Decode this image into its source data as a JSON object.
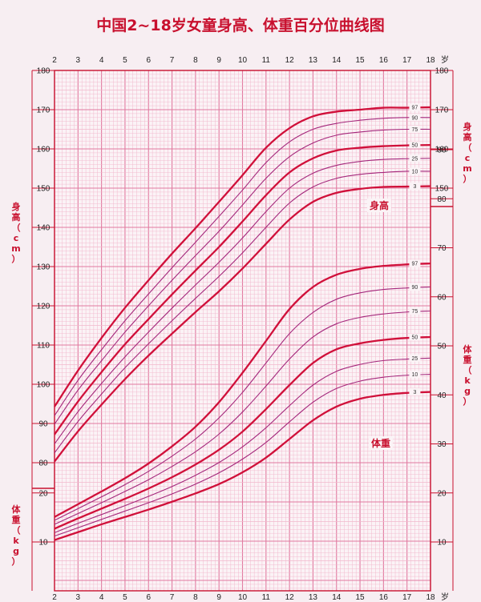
{
  "chart_data": {
    "type": "line",
    "title": "中国2~18岁女童身高、体重百分位曲线图",
    "x_unit": "岁",
    "x_ticks": [
      2,
      3,
      4,
      5,
      6,
      7,
      8,
      9,
      10,
      11,
      12,
      13,
      14,
      15,
      16,
      17,
      18
    ],
    "x_range": [
      2,
      18
    ],
    "height_axis": {
      "label": "身高（cm）",
      "left_range": [
        80,
        180
      ],
      "left_ticks": [
        80,
        90,
        100,
        110,
        120,
        130,
        140,
        150,
        160,
        170,
        180
      ],
      "right_range": [
        140,
        180
      ],
      "right_ticks": [
        150,
        160,
        170,
        180
      ]
    },
    "weight_axis": {
      "label": "体重（kg）",
      "right_range": [
        0,
        90
      ],
      "right_ticks": [
        10,
        20,
        30,
        40,
        50,
        60,
        70,
        80,
        90
      ],
      "left_range": [
        0,
        20
      ],
      "left_ticks": [
        10,
        20
      ]
    },
    "height_section_label": "身高",
    "weight_section_label": "体重",
    "x": [
      2,
      3,
      4,
      5,
      6,
      7,
      8,
      9,
      10,
      11,
      12,
      13,
      14,
      15,
      16,
      17,
      18
    ],
    "height_series": [
      {
        "name": "97",
        "values": [
          94.3,
          103.5,
          111.8,
          119.5,
          126.5,
          133.3,
          139.8,
          146.5,
          153.3,
          160.3,
          165.3,
          168.3,
          169.5,
          170.0,
          170.5,
          170.5,
          170.6
        ]
      },
      {
        "name": "90",
        "values": [
          92.0,
          101.0,
          108.8,
          116.2,
          123.0,
          129.7,
          136.2,
          142.8,
          149.5,
          156.5,
          161.8,
          165.0,
          166.5,
          167.3,
          167.8,
          168.0,
          168.0
        ]
      },
      {
        "name": "75",
        "values": [
          89.8,
          98.5,
          106.0,
          113.3,
          120.0,
          126.5,
          132.8,
          139.0,
          145.7,
          152.5,
          158.0,
          161.5,
          163.5,
          164.3,
          164.8,
          165.0,
          165.0
        ]
      },
      {
        "name": "50",
        "values": [
          87.2,
          95.6,
          103.1,
          110.2,
          116.6,
          122.9,
          129.0,
          135.0,
          141.5,
          148.2,
          154.0,
          157.6,
          159.6,
          160.3,
          160.7,
          160.9,
          161.0
        ]
      },
      {
        "name": "25",
        "values": [
          84.8,
          93.0,
          100.2,
          107.0,
          113.3,
          119.4,
          125.3,
          131.1,
          137.3,
          144.0,
          150.0,
          153.8,
          155.8,
          156.8,
          157.3,
          157.5,
          157.6
        ]
      },
      {
        "name": "10",
        "values": [
          82.5,
          90.5,
          97.5,
          104.2,
          110.3,
          116.2,
          121.9,
          127.5,
          133.5,
          140.0,
          146.2,
          150.3,
          152.5,
          153.5,
          154.0,
          154.3,
          154.3
        ]
      },
      {
        "name": "3",
        "values": [
          80.3,
          88.0,
          94.8,
          101.3,
          107.3,
          112.9,
          118.4,
          123.7,
          129.5,
          135.8,
          142.0,
          146.5,
          148.8,
          149.8,
          150.3,
          150.4,
          150.5
        ]
      }
    ],
    "weight_series": [
      {
        "name": "97",
        "values": [
          15.1,
          17.7,
          20.3,
          23.0,
          26.0,
          29.5,
          33.5,
          38.5,
          44.5,
          51.0,
          57.5,
          62.0,
          64.5,
          65.7,
          66.3,
          66.6,
          66.8
        ]
      },
      {
        "name": "90",
        "values": [
          14.4,
          16.8,
          19.2,
          21.7,
          24.4,
          27.5,
          31.0,
          35.3,
          40.5,
          46.5,
          52.5,
          56.8,
          59.5,
          60.8,
          61.5,
          61.8,
          62.0
        ]
      },
      {
        "name": "75",
        "values": [
          13.6,
          15.8,
          18.0,
          20.3,
          22.7,
          25.4,
          28.4,
          32.0,
          36.5,
          41.8,
          47.3,
          51.8,
          54.5,
          55.8,
          56.5,
          56.9,
          57.1
        ]
      },
      {
        "name": "50",
        "values": [
          12.7,
          14.8,
          16.8,
          18.8,
          20.9,
          23.2,
          25.8,
          28.8,
          32.5,
          37.1,
          42.0,
          46.5,
          49.3,
          50.5,
          51.2,
          51.6,
          51.8
        ]
      },
      {
        "name": "25",
        "values": [
          11.9,
          13.8,
          15.6,
          17.4,
          19.3,
          21.3,
          23.6,
          26.2,
          29.4,
          33.3,
          37.8,
          42.0,
          44.8,
          46.2,
          47.0,
          47.3,
          47.5
        ]
      },
      {
        "name": "10",
        "values": [
          11.2,
          12.9,
          14.6,
          16.3,
          18.0,
          19.8,
          21.8,
          24.1,
          26.9,
          30.3,
          34.5,
          38.5,
          41.3,
          42.8,
          43.6,
          44.0,
          44.2
        ]
      },
      {
        "name": "3",
        "values": [
          10.4,
          12.0,
          13.6,
          15.1,
          16.6,
          18.2,
          19.9,
          21.8,
          24.2,
          27.2,
          31.0,
          34.8,
          37.6,
          39.2,
          40.0,
          40.4,
          40.6
        ]
      }
    ],
    "colors": {
      "grid_minor": "#f2b8cd",
      "grid_major": "#e17aa0",
      "curve_outer": "#d0103a",
      "curve_inner": "#a4287c",
      "title": "#c8102e",
      "background": "#f7eef2"
    }
  }
}
